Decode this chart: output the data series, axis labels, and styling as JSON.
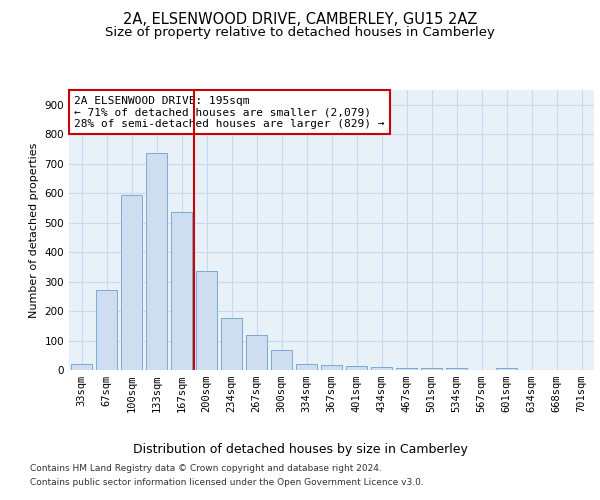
{
  "title": "2A, ELSENWOOD DRIVE, CAMBERLEY, GU15 2AZ",
  "subtitle": "Size of property relative to detached houses in Camberley",
  "xlabel": "Distribution of detached houses by size in Camberley",
  "ylabel": "Number of detached properties",
  "categories": [
    "33sqm",
    "67sqm",
    "100sqm",
    "133sqm",
    "167sqm",
    "200sqm",
    "234sqm",
    "267sqm",
    "300sqm",
    "334sqm",
    "367sqm",
    "401sqm",
    "434sqm",
    "467sqm",
    "501sqm",
    "534sqm",
    "567sqm",
    "601sqm",
    "634sqm",
    "668sqm",
    "701sqm"
  ],
  "values": [
    20,
    270,
    595,
    735,
    535,
    335,
    175,
    118,
    68,
    22,
    18,
    13,
    10,
    7,
    6,
    6,
    0,
    6,
    0,
    0,
    0
  ],
  "bar_color": "#cfddf0",
  "bar_edge_color": "#7aaad4",
  "grid_color": "#c8d8ee",
  "background_color": "#e8f0f8",
  "vline_color": "#cc0000",
  "annotation_text": "2A ELSENWOOD DRIVE: 195sqm\n← 71% of detached houses are smaller (2,079)\n28% of semi-detached houses are larger (829) →",
  "annotation_box_color": "#cc0000",
  "ylim": [
    0,
    950
  ],
  "yticks": [
    0,
    100,
    200,
    300,
    400,
    500,
    600,
    700,
    800,
    900
  ],
  "footer_line1": "Contains HM Land Registry data © Crown copyright and database right 2024.",
  "footer_line2": "Contains public sector information licensed under the Open Government Licence v3.0.",
  "title_fontsize": 10.5,
  "subtitle_fontsize": 9.5,
  "xlabel_fontsize": 9,
  "ylabel_fontsize": 8,
  "tick_fontsize": 7.5,
  "annotation_fontsize": 8,
  "footer_fontsize": 6.5
}
